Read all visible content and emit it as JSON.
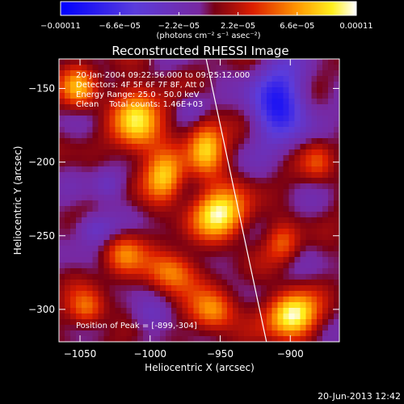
{
  "chart_data": {
    "type": "heatmap",
    "title": "Reconstructed RHESSI Image",
    "xlabel": "Heliocentric X (arcsec)",
    "ylabel": "Heliocentric Y (arcsec)",
    "xlim": [
      -1065,
      -865
    ],
    "ylim": [
      -322,
      -130
    ],
    "x_ticks": [
      -1050,
      -1000,
      -950,
      -900
    ],
    "x_tick_labels": [
      "−1050",
      "−1000",
      "−950",
      "−900"
    ],
    "y_ticks": [
      -150,
      -200,
      -250,
      -300
    ],
    "y_tick_labels": [
      "−150",
      "−200",
      "−250",
      "−300"
    ],
    "colorbar": {
      "min": -0.00011,
      "max": 0.00011,
      "tick_labels": [
        "−0.00011",
        "−6.6e−05",
        "−2.2e−05",
        "2.2e−05",
        "6.6e−05",
        "0.00011"
      ],
      "unit_label": "(photons cm⁻² s⁻¹ asec⁻²)"
    },
    "info_lines": [
      "20-Jan-2004 09:22:56.000 to 09:25:12.000",
      "Detectors: 4F 5F 6F 7F 8F, Att 0",
      "Energy Range: 25.0 - 50.0 keV",
      "Clean    Total counts: 1.46E+03"
    ],
    "peak_text": "Position of Peak = [-899,-304]",
    "peak": [
      -899,
      -304
    ],
    "limb_line": [
      [
        -960,
        -130
      ],
      [
        -917,
        -322
      ]
    ],
    "sources": [
      {
        "x": -1008,
        "y": -172,
        "sx": 12,
        "sy": 16,
        "amp": 0.9
      },
      {
        "x": -960,
        "y": -190,
        "sx": 9,
        "sy": 14,
        "amp": 0.85
      },
      {
        "x": -990,
        "y": -210,
        "sx": 10,
        "sy": 12,
        "amp": 0.75
      },
      {
        "x": -950,
        "y": -235,
        "sx": 14,
        "sy": 12,
        "amp": 1.0
      },
      {
        "x": -1020,
        "y": -262,
        "sx": 10,
        "sy": 10,
        "amp": 0.55
      },
      {
        "x": -985,
        "y": -275,
        "sx": 12,
        "sy": 10,
        "amp": 0.7
      },
      {
        "x": -1050,
        "y": -150,
        "sx": 9,
        "sy": 10,
        "amp": 0.7
      },
      {
        "x": -1045,
        "y": -300,
        "sx": 9,
        "sy": 9,
        "amp": 0.6
      },
      {
        "x": -955,
        "y": -302,
        "sx": 11,
        "sy": 10,
        "amp": 0.7
      },
      {
        "x": -899,
        "y": -304,
        "sx": 12,
        "sy": 11,
        "amp": 1.1
      },
      {
        "x": -905,
        "y": -255,
        "sx": 8,
        "sy": 9,
        "amp": 0.45
      },
      {
        "x": -880,
        "y": -200,
        "sx": 8,
        "sy": 10,
        "amp": 0.4
      },
      {
        "x": -1030,
        "y": -215,
        "sx": 8,
        "sy": 8,
        "amp": -0.35
      },
      {
        "x": -908,
        "y": -160,
        "sx": 14,
        "sy": 18,
        "amp": -0.9
      },
      {
        "x": -1040,
        "y": -245,
        "sx": 10,
        "sy": 8,
        "amp": -0.45
      },
      {
        "x": -970,
        "y": -162,
        "sx": 8,
        "sy": 8,
        "amp": -0.3
      },
      {
        "x": -1000,
        "y": -305,
        "sx": 10,
        "sy": 8,
        "amp": -0.3
      }
    ]
  },
  "footer_date": "20-Jun-2013 12:42"
}
